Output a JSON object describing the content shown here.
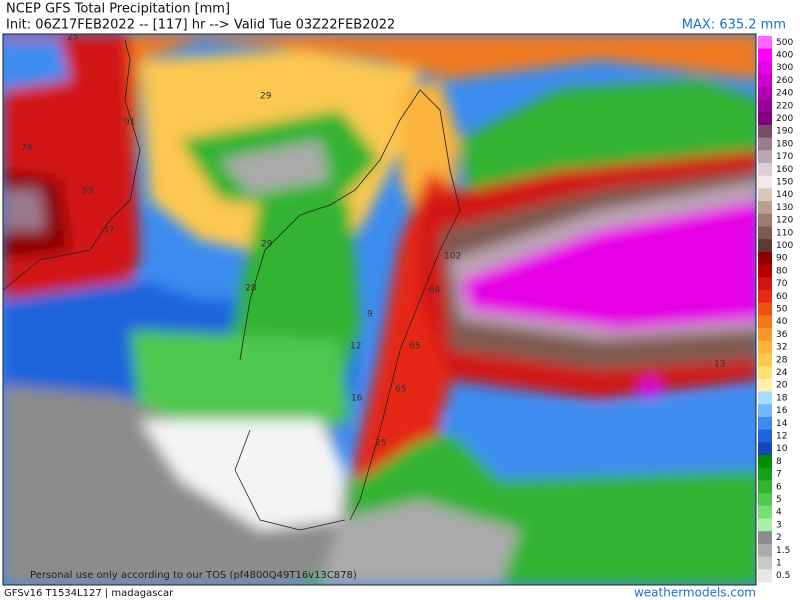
{
  "header": {
    "title": "NCEP GFS Total Precipitation [mm]",
    "init": "Init: 06Z17FEB2022 -- [117] hr --> Valid Tue 03Z22FEB2022",
    "max": "MAX: 635.2 mm"
  },
  "legend": {
    "levels": [
      {
        "label": "500",
        "color": "#ff66ff"
      },
      {
        "label": "400",
        "color": "#ff00ff"
      },
      {
        "label": "300",
        "color": "#e600e6"
      },
      {
        "label": "260",
        "color": "#cc00cc"
      },
      {
        "label": "240",
        "color": "#b300b3"
      },
      {
        "label": "220",
        "color": "#990099"
      },
      {
        "label": "200",
        "color": "#800080"
      },
      {
        "label": "190",
        "color": "#7a4a6a"
      },
      {
        "label": "180",
        "color": "#9c7a8e"
      },
      {
        "label": "170",
        "color": "#bba6b3"
      },
      {
        "label": "160",
        "color": "#dccfd6"
      },
      {
        "label": "150",
        "color": "#f2e8ec"
      },
      {
        "label": "140",
        "color": "#d9c6bd"
      },
      {
        "label": "130",
        "color": "#b9a091"
      },
      {
        "label": "120",
        "color": "#9c7c70"
      },
      {
        "label": "110",
        "color": "#7e5a50"
      },
      {
        "label": "100",
        "color": "#5c3a32"
      },
      {
        "label": "90",
        "color": "#8c0000"
      },
      {
        "label": "80",
        "color": "#b40000"
      },
      {
        "label": "70",
        "color": "#d21414"
      },
      {
        "label": "60",
        "color": "#e62814"
      },
      {
        "label": "50",
        "color": "#f05014"
      },
      {
        "label": "40",
        "color": "#f57814"
      },
      {
        "label": "36",
        "color": "#fa9628"
      },
      {
        "label": "32",
        "color": "#fcb43c"
      },
      {
        "label": "28",
        "color": "#fdc850"
      },
      {
        "label": "24",
        "color": "#fee070"
      },
      {
        "label": "20",
        "color": "#fff3a8"
      },
      {
        "label": "18",
        "color": "#a8dcff"
      },
      {
        "label": "16",
        "color": "#6eb8ff"
      },
      {
        "label": "14",
        "color": "#3c8cf0"
      },
      {
        "label": "12",
        "color": "#1e64dc"
      },
      {
        "label": "10",
        "color": "#1446b4"
      },
      {
        "label": "8",
        "color": "#008c00"
      },
      {
        "label": "7",
        "color": "#14a014"
      },
      {
        "label": "6",
        "color": "#32b432"
      },
      {
        "label": "5",
        "color": "#50c850"
      },
      {
        "label": "4",
        "color": "#78dc78"
      },
      {
        "label": "3",
        "color": "#a8f0a8"
      },
      {
        "label": "2",
        "color": "#8c8c8c"
      },
      {
        "label": "1.5",
        "color": "#aaaaaa"
      },
      {
        "label": "1",
        "color": "#c8c8c8"
      },
      {
        "label": "0.5",
        "color": "#e6e6e6"
      }
    ]
  },
  "map": {
    "labels": [
      "25",
      "29",
      "91",
      "74",
      "89",
      "37",
      "29",
      "28",
      "9",
      "12",
      "102",
      "64",
      "65",
      "65",
      "16",
      "25",
      "13"
    ],
    "notice": "Personal use only according to our TOS (pf4800Q49T16v13C878)"
  },
  "footer": {
    "model": "GFSv16 T1534L127 | madagascar",
    "site": "weathermodels.com"
  }
}
